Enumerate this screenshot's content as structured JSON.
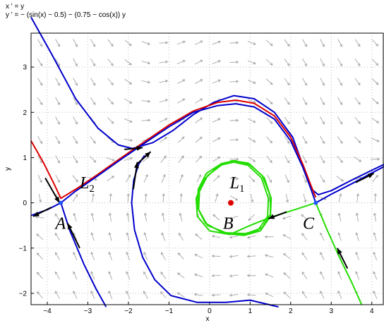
{
  "title_lines": [
    "x ' = y",
    "y ' = − (sin(x) − 0.5) − (0.75 − cos(x)) y"
  ],
  "colors": {
    "blue": "#0000cc",
    "red": "#dd0000",
    "green": "#22dd00",
    "field": "#a6a6a6",
    "equilibrium": "#2255ff"
  },
  "chart_data": {
    "type": "line",
    "title": "",
    "xlabel": "x",
    "ylabel": "y",
    "xlim": [
      -4.4,
      4.3
    ],
    "ylim": [
      -2.25,
      3.75
    ],
    "xticks": [
      -4,
      -3,
      -2,
      -1,
      0,
      1,
      2,
      3,
      4
    ],
    "yticks": [
      -2,
      -1,
      0,
      1,
      2,
      3
    ],
    "grid": true,
    "equilibria": [
      {
        "name": "A",
        "x": -3.665,
        "y": 0
      },
      {
        "name": "B",
        "x": 0.524,
        "y": 0
      },
      {
        "name": "C",
        "x": 2.618,
        "y": 0
      }
    ],
    "annotations": [
      {
        "main": "A",
        "sub": "",
        "x": -3.8,
        "y": -0.45
      },
      {
        "main": "B",
        "sub": "",
        "x": 0.33,
        "y": -0.45
      },
      {
        "main": "C",
        "sub": "",
        "x": 2.3,
        "y": -0.45
      },
      {
        "main": "L",
        "sub": "2",
        "x": -3.2,
        "y": 0.45
      },
      {
        "main": "L",
        "sub": "1",
        "x": 0.5,
        "y": 0.45
      }
    ],
    "series": [
      {
        "color": "blue",
        "points": [
          [
            -4.4,
            4.1
          ],
          [
            -3.9,
            3.3
          ],
          [
            -3.3,
            2.3
          ],
          [
            -2.75,
            1.65
          ],
          [
            -2.25,
            1.28
          ],
          [
            -1.9,
            1.2
          ],
          [
            -1.4,
            1.33
          ],
          [
            -0.9,
            1.6
          ],
          [
            -0.4,
            1.95
          ],
          [
            0.1,
            2.22
          ],
          [
            0.6,
            2.37
          ],
          [
            1.1,
            2.3
          ],
          [
            1.6,
            2.0
          ],
          [
            2.05,
            1.45
          ],
          [
            2.35,
            0.7
          ],
          [
            2.52,
            0.3
          ],
          [
            2.68,
            0.18
          ],
          [
            3.0,
            0.27
          ],
          [
            3.5,
            0.5
          ],
          [
            4.0,
            0.72
          ],
          [
            4.3,
            0.85
          ]
        ]
      },
      {
        "color": "red",
        "points": [
          [
            -4.4,
            1.37
          ],
          [
            -4.1,
            0.9
          ],
          [
            -3.85,
            0.45
          ],
          [
            -3.665,
            0.1
          ],
          [
            -3.3,
            0.3
          ],
          [
            -2.8,
            0.6
          ],
          [
            -2.2,
            0.98
          ],
          [
            -1.6,
            1.35
          ],
          [
            -1.0,
            1.72
          ],
          [
            -0.4,
            2.03
          ],
          [
            0.2,
            2.22
          ],
          [
            0.65,
            2.27
          ],
          [
            1.1,
            2.2
          ],
          [
            1.6,
            1.92
          ],
          [
            2.0,
            1.45
          ],
          [
            2.3,
            0.85
          ],
          [
            2.5,
            0.38
          ],
          [
            2.618,
            0.12
          ]
        ]
      },
      {
        "color": "blue",
        "points": [
          [
            -4.4,
            -0.28
          ],
          [
            -4.0,
            -0.15
          ],
          [
            -3.665,
            0
          ],
          [
            -3.3,
            0.26
          ],
          [
            -2.8,
            0.57
          ],
          [
            -2.2,
            0.95
          ],
          [
            -1.6,
            1.32
          ],
          [
            -1.0,
            1.68
          ],
          [
            -0.4,
            2.0
          ],
          [
            0.2,
            2.15
          ],
          [
            0.65,
            2.19
          ],
          [
            1.1,
            2.12
          ],
          [
            1.6,
            1.85
          ],
          [
            2.0,
            1.37
          ],
          [
            2.3,
            0.78
          ],
          [
            2.5,
            0.3
          ],
          [
            2.618,
            0
          ],
          [
            3.0,
            0.19
          ],
          [
            3.5,
            0.42
          ],
          [
            4.0,
            0.66
          ],
          [
            4.3,
            0.8
          ]
        ]
      },
      {
        "color": "blue",
        "points": [
          [
            -3.665,
            0
          ],
          [
            -3.45,
            -0.6
          ],
          [
            -3.1,
            -1.35
          ],
          [
            -2.8,
            -1.9
          ],
          [
            -2.55,
            -2.3
          ]
        ]
      },
      {
        "color": "blue",
        "points": [
          [
            -1.6,
            1.05
          ],
          [
            -1.75,
            0.85
          ],
          [
            -1.87,
            0.5
          ],
          [
            -1.92,
            0.0
          ],
          [
            -1.85,
            -0.6
          ],
          [
            -1.65,
            -1.2
          ],
          [
            -1.35,
            -1.7
          ],
          [
            -0.95,
            -2.05
          ],
          [
            -0.3,
            -2.2
          ],
          [
            0.4,
            -2.2
          ],
          [
            1.0,
            -2.15
          ],
          [
            1.7,
            -2.3
          ]
        ]
      },
      {
        "color": "green",
        "points": [
          [
            2.618,
            0
          ],
          [
            2.1,
            -0.15
          ],
          [
            1.5,
            -0.32
          ],
          [
            1.0,
            -0.5
          ],
          [
            0.5,
            -0.7
          ],
          [
            0.0,
            -0.62
          ],
          [
            -0.3,
            -0.3
          ],
          [
            -0.33,
            0.1
          ],
          [
            -0.15,
            0.5
          ],
          [
            0.2,
            0.8
          ],
          [
            0.55,
            0.93
          ],
          [
            0.95,
            0.88
          ],
          [
            1.3,
            0.6
          ],
          [
            1.5,
            0.15
          ],
          [
            1.5,
            -0.25
          ],
          [
            1.3,
            -0.55
          ],
          [
            0.9,
            -0.68
          ],
          [
            0.4,
            -0.66
          ],
          [
            -0.05,
            -0.5
          ],
          [
            -0.27,
            -0.15
          ],
          [
            -0.25,
            0.25
          ],
          [
            -0.05,
            0.6
          ],
          [
            0.3,
            0.84
          ],
          [
            0.6,
            0.9
          ],
          [
            0.95,
            0.83
          ],
          [
            1.28,
            0.55
          ],
          [
            1.45,
            0.1
          ],
          [
            1.43,
            -0.3
          ],
          [
            1.2,
            -0.6
          ],
          [
            0.8,
            -0.7
          ],
          [
            0.3,
            -0.65
          ],
          [
            -0.1,
            -0.45
          ],
          [
            -0.3,
            -0.1
          ],
          [
            -0.28,
            0.3
          ],
          [
            -0.08,
            0.65
          ],
          [
            0.3,
            0.87
          ],
          [
            0.62,
            0.93
          ],
          [
            1.0,
            0.85
          ],
          [
            1.35,
            0.55
          ],
          [
            1.52,
            0.1
          ],
          [
            1.5,
            -0.3
          ],
          [
            1.25,
            -0.62
          ],
          [
            0.85,
            -0.72
          ],
          [
            0.4,
            -0.68
          ]
        ]
      },
      {
        "color": "green",
        "points": [
          [
            2.618,
            0
          ],
          [
            2.9,
            -0.6
          ],
          [
            3.2,
            -1.2
          ],
          [
            3.5,
            -1.75
          ],
          [
            3.75,
            -2.25
          ]
        ]
      }
    ],
    "arrows": [
      {
        "x": -4.05,
        "y": 0.55,
        "dx": 0.35,
        "dy": -0.55
      },
      {
        "x": -3.9,
        "y": -0.1,
        "dx": -0.45,
        "dy": -0.2
      },
      {
        "x": -3.2,
        "y": -1.0,
        "dx": -0.3,
        "dy": 0.55
      },
      {
        "x": -2.1,
        "y": 1.18,
        "dx": 0.45,
        "dy": 0.04
      },
      {
        "x": -1.8,
        "y": 0.85,
        "dx": 0.35,
        "dy": 0.28
      },
      {
        "x": -1.88,
        "y": 0.3,
        "dx": 0.1,
        "dy": 0.6
      },
      {
        "x": 1.9,
        "y": -0.2,
        "dx": -0.45,
        "dy": -0.15
      },
      {
        "x": 3.4,
        "y": -1.45,
        "dx": -0.25,
        "dy": 0.45
      },
      {
        "x": 3.6,
        "y": 0.45,
        "dx": 0.45,
        "dy": 0.2
      }
    ]
  }
}
